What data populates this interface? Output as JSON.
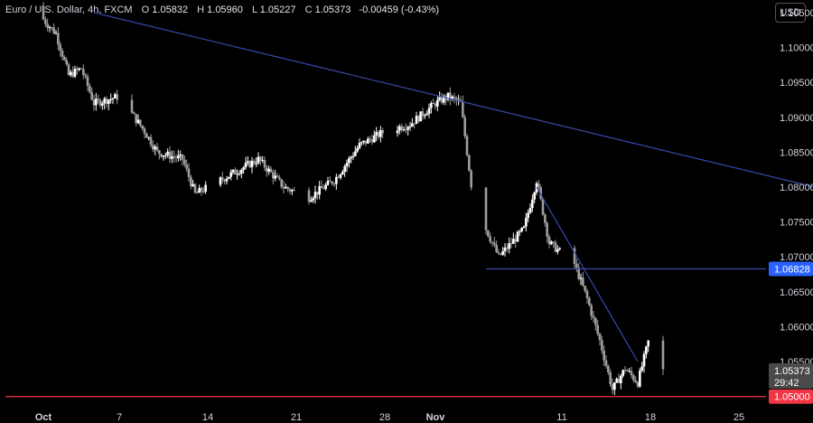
{
  "legend": {
    "symbol": "Euro / U.S. Dollar, 4h, FXCM",
    "o_label": "O",
    "o_value": "1.05832",
    "h_label": "H",
    "h_value": "1.05960",
    "l_label": "L",
    "l_value": "1.05227",
    "c_label": "C",
    "c_value": "1.05373",
    "change": "-0.00459 (-0.43%)"
  },
  "currency_button": "USD",
  "chart_data": {
    "type": "candlestick",
    "symbol": "EURUSD",
    "timeframe": "4h",
    "y_ticks": [
      "1.10500",
      "1.10000",
      "1.09500",
      "1.09000",
      "1.08500",
      "1.08000",
      "1.07500",
      "1.07000",
      "1.06500",
      "1.06000",
      "1.05500"
    ],
    "y_tick_values": [
      1.105,
      1.1,
      1.095,
      1.09,
      1.085,
      1.08,
      1.075,
      1.07,
      1.065,
      1.06,
      1.055
    ],
    "x_ticks": [
      "Oct",
      "7",
      "14",
      "21",
      "28",
      "Nov",
      "11",
      "18",
      "25"
    ],
    "x_tick_dates": [
      "2023-10-01",
      "2023-10-07",
      "2023-10-14",
      "2023-10-21",
      "2023-10-28",
      "2023-11-01",
      "2023-11-11",
      "2023-11-18",
      "2023-11-25"
    ],
    "ylim": [
      1.0488,
      1.1068
    ],
    "price_path": [
      [
        "2023-09-30",
        1.106
      ],
      [
        "2023-10-02",
        1.102
      ],
      [
        "2023-10-03",
        1.096
      ],
      [
        "2023-10-04",
        1.097
      ],
      [
        "2023-10-05",
        1.092
      ],
      [
        "2023-10-07",
        1.093
      ],
      [
        "2023-10-09",
        1.088
      ],
      [
        "2023-10-10",
        1.085
      ],
      [
        "2023-10-12",
        1.084
      ],
      [
        "2023-10-13",
        1.079
      ],
      [
        "2023-10-16",
        1.082
      ],
      [
        "2023-10-18",
        1.084
      ],
      [
        "2023-10-20",
        1.08
      ],
      [
        "2023-10-22",
        1.0785
      ],
      [
        "2023-10-24",
        1.081
      ],
      [
        "2023-10-26",
        1.086
      ],
      [
        "2023-10-28",
        1.088
      ],
      [
        "2023-10-30",
        1.089
      ],
      [
        "2023-11-01",
        1.092
      ],
      [
        "2023-11-02",
        1.093
      ],
      [
        "2023-11-03",
        1.092
      ],
      [
        "2023-11-04",
        1.078
      ],
      [
        "2023-11-06",
        1.07
      ],
      [
        "2023-11-08",
        1.074
      ],
      [
        "2023-11-09",
        1.081
      ],
      [
        "2023-11-10",
        1.072
      ],
      [
        "2023-11-12",
        1.069
      ],
      [
        "2023-11-13",
        1.064
      ],
      [
        "2023-11-14",
        1.058
      ],
      [
        "2023-11-15",
        1.051
      ],
      [
        "2023-11-16",
        1.054
      ],
      [
        "2023-11-17",
        1.052
      ],
      [
        "2023-11-18",
        1.059
      ],
      [
        "2023-11-19",
        1.0537
      ]
    ],
    "trendlines": [
      {
        "from": [
          "2023-10-05",
          1.105
        ],
        "to": [
          "2023-12-01",
          1.08
        ],
        "color": "#3949ab"
      },
      {
        "from": [
          "2023-11-09",
          1.08
        ],
        "to": [
          "2023-11-17",
          1.055
        ],
        "color": "#3949ab"
      }
    ],
    "horizontal_lines": [
      {
        "from_date": "2023-11-05",
        "value": 1.06828,
        "label": "1.06828",
        "color": "#3949ab",
        "label_bg": "#2962ff"
      },
      {
        "from_date": "2023-09-28",
        "value": 1.05,
        "label": "1.05000",
        "color": "#f23645",
        "label_bg": "#f23645"
      }
    ],
    "last_price": {
      "value": "1.05373",
      "countdown": "29:42"
    }
  }
}
